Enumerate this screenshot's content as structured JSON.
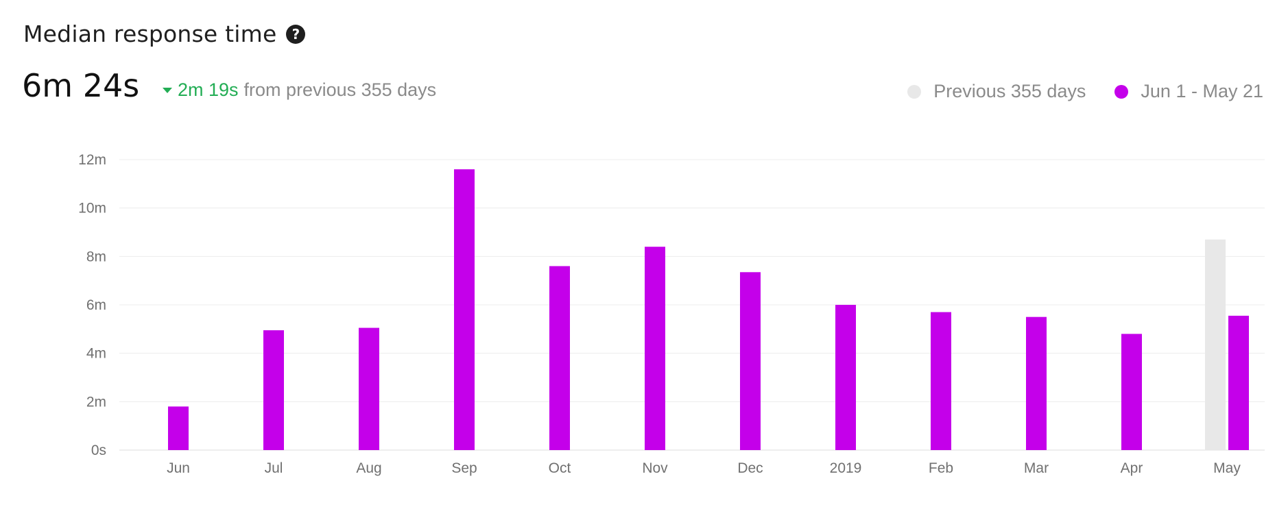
{
  "header": {
    "title": "Median response time",
    "help_icon": "question-circle-icon",
    "value": "6m 24s",
    "delta_direction": "down",
    "delta_value": "2m 19s",
    "delta_text": "from previous 355 days",
    "delta_color": "#22ad54"
  },
  "legend": {
    "position": "top-right",
    "items": [
      {
        "label": "Previous 355 days",
        "color": "#e8e8e8"
      },
      {
        "label": "Jun 1 - May 21",
        "color": "#c400ea"
      }
    ]
  },
  "chart_data": {
    "type": "bar",
    "title": "Median response time",
    "categories": [
      "Jun",
      "Jul",
      "Aug",
      "Sep",
      "Oct",
      "Nov",
      "Dec",
      "2019",
      "Feb",
      "Mar",
      "Apr",
      "May"
    ],
    "series": [
      {
        "name": "Previous 355 days",
        "color": "#e8e8e8",
        "values": [
          null,
          null,
          null,
          null,
          null,
          null,
          null,
          null,
          null,
          null,
          null,
          8.7
        ]
      },
      {
        "name": "Jun 1 - May 21",
        "color": "#c400ea",
        "values": [
          1.8,
          4.95,
          5.05,
          11.6,
          7.6,
          8.4,
          7.35,
          6.0,
          5.7,
          5.5,
          4.8,
          5.55
        ]
      }
    ],
    "y_unit": "minutes",
    "ylim": [
      0,
      12
    ],
    "yticks": [
      0,
      2,
      4,
      6,
      8,
      10,
      12
    ],
    "ytick_labels": [
      "0s",
      "2m",
      "4m",
      "6m",
      "8m",
      "10m",
      "12m"
    ],
    "grid": true
  }
}
